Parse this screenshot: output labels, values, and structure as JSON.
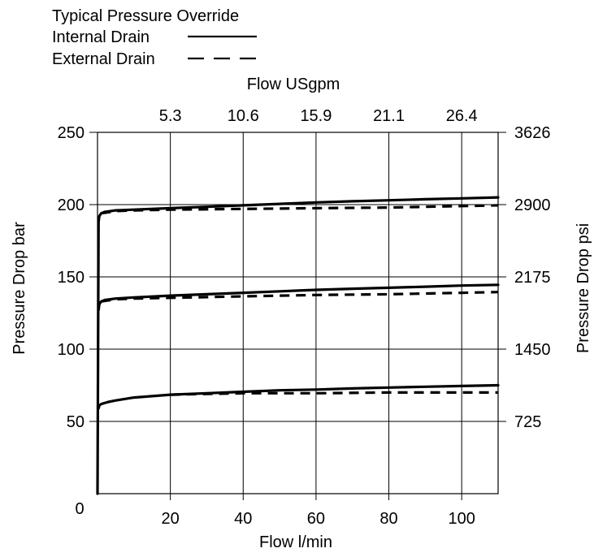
{
  "chart_data": {
    "type": "line",
    "title": "Typical Pressure Override",
    "legend": {
      "placement": "top-left",
      "entries": [
        {
          "label": "Internal Drain",
          "style": "solid"
        },
        {
          "label": "External Drain",
          "style": "dashed"
        }
      ]
    },
    "x_axis": {
      "label": "Flow l/min",
      "range": [
        0,
        110
      ],
      "ticks": [
        20,
        40,
        60,
        80,
        100
      ],
      "zero_label": "0"
    },
    "x2_axis": {
      "label": "Flow USgpm",
      "tick_labels": [
        "5.3",
        "10.6",
        "15.9",
        "21.1",
        "26.4"
      ]
    },
    "y_axis": {
      "label": "Pressure Drop bar",
      "range": [
        0,
        250
      ],
      "ticks": [
        50,
        100,
        150,
        200,
        250
      ]
    },
    "y2_axis": {
      "label": "Pressure Drop psi",
      "tick_labels": [
        "725",
        "1450",
        "2175",
        "2900",
        "3626"
      ]
    },
    "grid": true,
    "series": [
      {
        "name": "Internal Drain",
        "group": "200 bar",
        "style": "solid",
        "x": [
          0,
          0.3,
          0.5,
          1,
          2,
          5,
          10,
          20,
          30,
          40,
          50,
          60,
          70,
          80,
          90,
          100,
          110
        ],
        "y": [
          0,
          188,
          192,
          194,
          195,
          196,
          196.5,
          197.5,
          198.5,
          199.5,
          200.5,
          201.5,
          202.3,
          203,
          203.7,
          204.3,
          205
        ]
      },
      {
        "name": "External Drain",
        "group": "200 bar",
        "style": "dashed",
        "x": [
          1,
          5,
          10,
          20,
          40,
          60,
          80,
          100,
          110
        ],
        "y": [
          194,
          195.5,
          196,
          196.5,
          197,
          197.5,
          198,
          199,
          199.5
        ]
      },
      {
        "name": "Internal Drain",
        "group": "140 bar",
        "style": "solid",
        "x": [
          0.3,
          0.5,
          1,
          2,
          5,
          10,
          20,
          30,
          40,
          50,
          60,
          70,
          80,
          90,
          100,
          110
        ],
        "y": [
          127,
          131,
          133,
          134,
          135,
          135.8,
          137,
          138,
          139,
          140,
          141,
          141.8,
          142.5,
          143.2,
          144,
          144.5
        ]
      },
      {
        "name": "External Drain",
        "group": "140 bar",
        "style": "dashed",
        "x": [
          1,
          5,
          10,
          20,
          40,
          60,
          80,
          100,
          110
        ],
        "y": [
          133,
          134.5,
          135,
          135.5,
          136.5,
          137.5,
          138,
          139,
          139.5
        ]
      },
      {
        "name": "Internal Drain",
        "group": "70 bar",
        "style": "solid",
        "x": [
          0.3,
          0.5,
          1,
          3,
          5,
          10,
          15,
          20,
          30,
          40,
          50,
          60,
          70,
          80,
          90,
          100,
          110
        ],
        "y": [
          59,
          61,
          62,
          63.5,
          64.5,
          66.5,
          67.5,
          68.5,
          69.5,
          70.5,
          71.5,
          72,
          72.8,
          73.4,
          74,
          74.5,
          75
        ]
      },
      {
        "name": "External Drain",
        "group": "70 bar",
        "style": "dashed",
        "x": [
          20,
          40,
          60,
          80,
          100,
          110
        ],
        "y": [
          68.5,
          69.5,
          69.5,
          70,
          70,
          70
        ]
      }
    ]
  }
}
